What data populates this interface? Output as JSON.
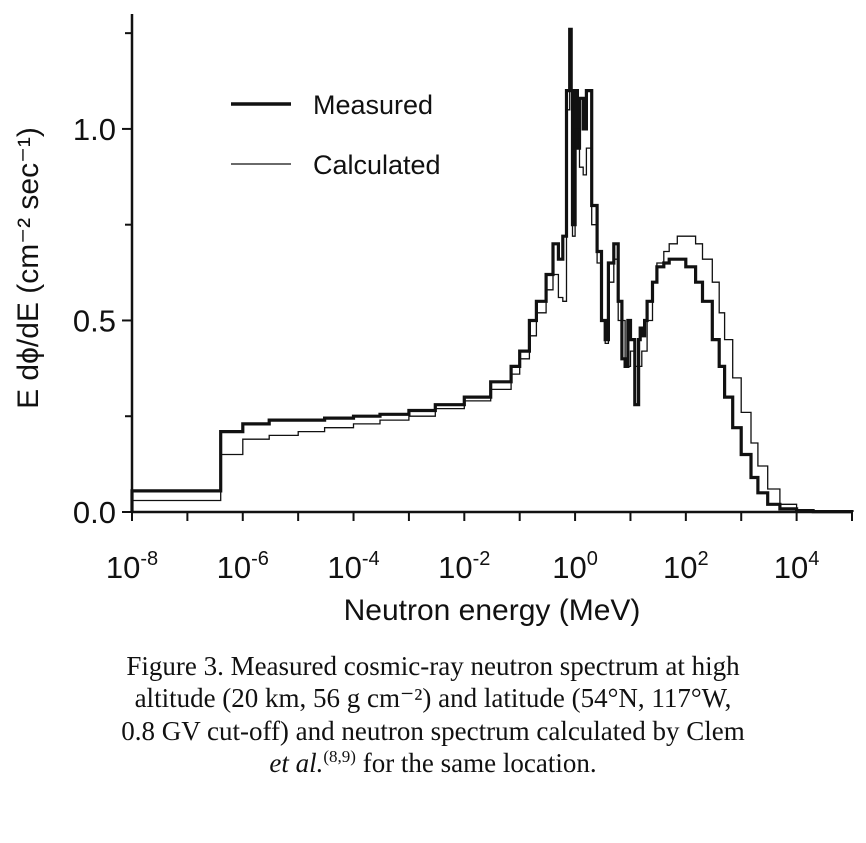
{
  "chart_data": {
    "type": "line",
    "title": "",
    "xlabel": "Neutron energy  (MeV)",
    "ylabel": "E dϕ/dE  (cm⁻² sec⁻¹)",
    "x_scale": "log",
    "xlim": [
      1e-08,
      100000.0
    ],
    "ylim": [
      0,
      1.3
    ],
    "x_ticks": [
      {
        "value": 1e-08,
        "base": "10",
        "exp": "-8"
      },
      {
        "value": 1e-06,
        "base": "10",
        "exp": "-6"
      },
      {
        "value": 0.0001,
        "base": "10",
        "exp": "-4"
      },
      {
        "value": 0.01,
        "base": "10",
        "exp": "-2"
      },
      {
        "value": 1,
        "base": "10",
        "exp": "0"
      },
      {
        "value": 100,
        "base": "10",
        "exp": "2"
      },
      {
        "value": 10000,
        "base": "10",
        "exp": "4"
      }
    ],
    "y_ticks": [
      {
        "value": 0,
        "label": "0.0"
      },
      {
        "value": 0.5,
        "label": "0.5"
      },
      {
        "value": 1.0,
        "label": "1.0"
      }
    ],
    "grid": false,
    "legend_position": "top-left",
    "series": [
      {
        "name": "Measured",
        "style": "thick",
        "color": "#111111",
        "x": [
          1e-08,
          4e-07,
          4e-07,
          1e-06,
          3e-06,
          1e-05,
          3e-05,
          0.0001,
          0.0003,
          0.001,
          0.003,
          0.01,
          0.03,
          0.07,
          0.1,
          0.15,
          0.2,
          0.3,
          0.4,
          0.5,
          0.6,
          0.7,
          0.75,
          0.8,
          0.85,
          0.9,
          1.0,
          1.1,
          1.2,
          1.4,
          1.6,
          2.0,
          2.5,
          3.0,
          3.5,
          4.0,
          5.0,
          6.0,
          7.0,
          8.0,
          9.0,
          10,
          12,
          14,
          15,
          16,
          18,
          20,
          25,
          30,
          40,
          50,
          70,
          100,
          150,
          200,
          300,
          400,
          500,
          700,
          1000,
          1500,
          2000,
          3000,
          5000,
          10000,
          20000,
          100000
        ],
        "y": [
          0.055,
          0.055,
          0.21,
          0.23,
          0.24,
          0.24,
          0.245,
          0.25,
          0.255,
          0.265,
          0.28,
          0.3,
          0.34,
          0.38,
          0.42,
          0.5,
          0.55,
          0.62,
          0.7,
          0.66,
          0.72,
          1.1,
          1.1,
          1.26,
          1.1,
          0.75,
          1.1,
          0.95,
          1.08,
          1.0,
          1.1,
          0.8,
          0.68,
          0.5,
          0.45,
          0.65,
          0.7,
          0.55,
          0.4,
          0.38,
          0.5,
          0.45,
          0.28,
          0.45,
          0.48,
          0.46,
          0.5,
          0.55,
          0.6,
          0.64,
          0.65,
          0.66,
          0.66,
          0.64,
          0.6,
          0.55,
          0.45,
          0.38,
          0.3,
          0.22,
          0.15,
          0.09,
          0.05,
          0.02,
          0.008,
          0.003,
          0.001,
          0.0
        ]
      },
      {
        "name": "Calculated",
        "style": "thin",
        "color": "#111111",
        "x": [
          1e-08,
          4e-07,
          4e-07,
          1e-06,
          3e-06,
          1e-05,
          3e-05,
          0.0001,
          0.0003,
          0.001,
          0.003,
          0.01,
          0.03,
          0.07,
          0.1,
          0.15,
          0.2,
          0.3,
          0.4,
          0.5,
          0.6,
          0.7,
          0.8,
          0.9,
          1.0,
          1.2,
          1.4,
          1.6,
          2.0,
          2.5,
          3.0,
          3.5,
          4.0,
          5.0,
          6.0,
          8.0,
          10,
          12,
          14,
          16,
          20,
          25,
          30,
          40,
          50,
          70,
          100,
          150,
          200,
          300,
          400,
          500,
          700,
          1000,
          1500,
          2000,
          3000,
          5000,
          10000,
          20000,
          100000
        ],
        "y": [
          0.03,
          0.03,
          0.15,
          0.19,
          0.2,
          0.21,
          0.22,
          0.23,
          0.24,
          0.25,
          0.27,
          0.29,
          0.32,
          0.36,
          0.4,
          0.46,
          0.52,
          0.58,
          0.62,
          0.56,
          0.55,
          1.05,
          1.1,
          0.72,
          1.0,
          0.9,
          0.88,
          0.95,
          0.75,
          0.65,
          0.5,
          0.44,
          0.6,
          0.66,
          0.5,
          0.38,
          0.42,
          0.38,
          0.38,
          0.42,
          0.5,
          0.6,
          0.65,
          0.68,
          0.7,
          0.72,
          0.72,
          0.7,
          0.66,
          0.6,
          0.52,
          0.45,
          0.35,
          0.26,
          0.18,
          0.12,
          0.06,
          0.02,
          0.006,
          0.002,
          0.0
        ]
      }
    ]
  },
  "legend": {
    "items": [
      {
        "label": "Measured",
        "style": "thick"
      },
      {
        "label": "Calculated",
        "style": "thin"
      }
    ]
  },
  "caption": {
    "line1": "Figure 3. Measured cosmic-ray neutron spectrum at high",
    "line2": "altitude (20 km, 56 g cm⁻²) and latitude (54°N, 117°W,",
    "line3": "0.8 GV cut-off) and neutron spectrum calculated by Clem",
    "line4_italic": "et al.",
    "line4_sup": "(8,9)",
    "line4_rest": " for the same location."
  }
}
